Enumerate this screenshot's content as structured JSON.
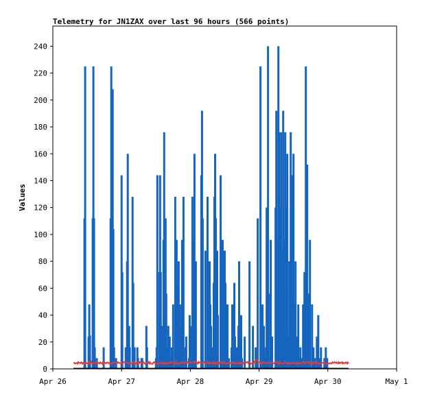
{
  "chart_data": {
    "type": "bar",
    "title": "Telemetry for JN1ZAX over last 96 hours (566 points)",
    "ylabel": "Values",
    "xlabel": "",
    "ylim": [
      0,
      255
    ],
    "yticks": [
      0,
      20,
      40,
      60,
      80,
      100,
      120,
      140,
      160,
      180,
      200,
      220,
      240
    ],
    "xlim": [
      0,
      5
    ],
    "xticks": [
      {
        "label": "Apr 26",
        "day": 0
      },
      {
        "label": "Apr 27",
        "day": 1
      },
      {
        "label": "Apr 28",
        "day": 2
      },
      {
        "label": "Apr 29",
        "day": 3
      },
      {
        "label": "Apr 30",
        "day": 4
      },
      {
        "label": "May 1",
        "day": 5
      }
    ],
    "grid": false,
    "colors": {
      "bars": "#1565c0",
      "line": "#e53935",
      "baseline": "#000000",
      "frame": "#000000"
    },
    "series": [
      {
        "type": "bar",
        "x": [
          0.46,
          0.47,
          0.52,
          0.53,
          0.54,
          0.58,
          0.59,
          0.6,
          0.61,
          0.62,
          0.64,
          0.74,
          0.84,
          0.85,
          0.86,
          0.87,
          0.88,
          0.89,
          0.9,
          0.92,
          1.0,
          1.01,
          1.06,
          1.08,
          1.09,
          1.1,
          1.11,
          1.12,
          1.16,
          1.17,
          1.19,
          1.23,
          1.24,
          1.29,
          1.3,
          1.36,
          1.37,
          1.38,
          1.5,
          1.51,
          1.52,
          1.55,
          1.56,
          1.57,
          1.58,
          1.59,
          1.6,
          1.61,
          1.62,
          1.64,
          1.65,
          1.66,
          1.67,
          1.68,
          1.69,
          1.7,
          1.71,
          1.72,
          1.73,
          1.75,
          1.78,
          1.8,
          1.81,
          1.82,
          1.83,
          1.84,
          1.85,
          1.86,
          1.87,
          1.88,
          1.89,
          1.9,
          1.93,
          1.94,
          1.98,
          1.99,
          2.0,
          2.01,
          2.03,
          2.05,
          2.06,
          2.08,
          2.16,
          2.17,
          2.18,
          2.22,
          2.25,
          2.27,
          2.28,
          2.29,
          2.3,
          2.31,
          2.33,
          2.34,
          2.35,
          2.36,
          2.37,
          2.39,
          2.4,
          2.44,
          2.47,
          2.48,
          2.49,
          2.5,
          2.51,
          2.52,
          2.53,
          2.54,
          2.56,
          2.59,
          2.6,
          2.61,
          2.62,
          2.63,
          2.64,
          2.65,
          2.67,
          2.68,
          2.7,
          2.71,
          2.72,
          2.73,
          2.74,
          2.75,
          2.79,
          2.86,
          2.91,
          2.95,
          2.97,
          2.98,
          3.02,
          3.05,
          3.07,
          3.08,
          3.1,
          3.11,
          3.13,
          3.16,
          3.17,
          3.19,
          3.24,
          3.25,
          3.27,
          3.28,
          3.29,
          3.3,
          3.32,
          3.34,
          3.35,
          3.36,
          3.37,
          3.38,
          3.39,
          3.4,
          3.41,
          3.43,
          3.44,
          3.46,
          3.47,
          3.48,
          3.5,
          3.52,
          3.53,
          3.55,
          3.57,
          3.58,
          3.6,
          3.62,
          3.64,
          3.66,
          3.68,
          3.7,
          3.72,
          3.74,
          3.77,
          3.79,
          3.81,
          3.84,
          3.86,
          3.88,
          3.9,
          3.93,
          3.95,
          3.97,
          3.99
        ],
        "values": [
          112,
          225,
          24,
          48,
          25,
          112,
          225,
          112,
          16,
          0,
          8,
          16,
          112,
          225,
          112,
          208,
          104,
          16,
          0,
          8,
          144,
          72,
          16,
          80,
          160,
          16,
          32,
          16,
          128,
          64,
          16,
          16,
          8,
          8,
          8,
          32,
          16,
          0,
          8,
          16,
          144,
          72,
          144,
          72,
          8,
          32,
          16,
          96,
          176,
          112,
          56,
          16,
          8,
          32,
          16,
          24,
          8,
          0,
          16,
          48,
          128,
          96,
          64,
          40,
          80,
          0,
          48,
          16,
          32,
          96,
          48,
          128,
          16,
          24,
          8,
          40,
          16,
          32,
          128,
          96,
          160,
          80,
          144,
          192,
          112,
          88,
          128,
          56,
          80,
          48,
          32,
          16,
          8,
          64,
          128,
          160,
          112,
          88,
          40,
          144,
          96,
          24,
          16,
          88,
          64,
          32,
          16,
          48,
          8,
          0,
          16,
          48,
          8,
          0,
          64,
          24,
          16,
          8,
          32,
          80,
          16,
          8,
          40,
          8,
          24,
          80,
          32,
          16,
          8,
          112,
          225,
          48,
          32,
          8,
          16,
          120,
          240,
          56,
          96,
          24,
          120,
          192,
          96,
          240,
          176,
          120,
          176,
          88,
          192,
          96,
          48,
          176,
          56,
          120,
          160,
          24,
          80,
          176,
          120,
          144,
          160,
          48,
          80,
          24,
          48,
          8,
          16,
          8,
          48,
          72,
          225,
          152,
          56,
          96,
          48,
          16,
          8,
          24,
          40,
          8,
          16,
          0,
          8,
          16,
          8
        ]
      },
      {
        "type": "line",
        "x_start": 0.3,
        "x_end": 4.3,
        "baseline_value": 4.5,
        "values_note": ""
      }
    ]
  }
}
